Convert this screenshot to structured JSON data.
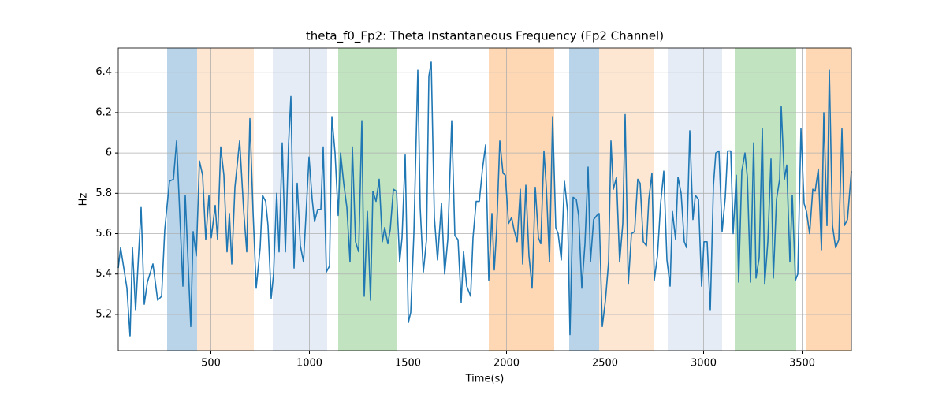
{
  "chart_data": {
    "type": "line",
    "title": "theta_f0_Fp2: Theta Instantaneous Frequency (Fp2 Channel)",
    "xlabel": "Time(s)",
    "ylabel": "Hz",
    "xlim": [
      30,
      3750
    ],
    "ylim": [
      5.02,
      6.52
    ],
    "xticks": [
      500,
      1000,
      1500,
      2000,
      2500,
      3000,
      3500
    ],
    "yticks": [
      5.2,
      5.4,
      5.6,
      5.8,
      6.0,
      6.2,
      6.4
    ],
    "grid": true,
    "spans": [
      {
        "start": 278,
        "end": 430,
        "color": "#b9d4e8"
      },
      {
        "start": 430,
        "end": 718,
        "color": "#fde7d2"
      },
      {
        "start": 814,
        "end": 1090,
        "color": "#e5ecf6"
      },
      {
        "start": 1146,
        "end": 1446,
        "color": "#c1e3bf"
      },
      {
        "start": 1910,
        "end": 2242,
        "color": "#fed8b5"
      },
      {
        "start": 2318,
        "end": 2470,
        "color": "#b9d4e8"
      },
      {
        "start": 2470,
        "end": 2746,
        "color": "#fde7d2"
      },
      {
        "start": 2818,
        "end": 3094,
        "color": "#e5ecf6"
      },
      {
        "start": 3158,
        "end": 3470,
        "color": "#c1e3bf"
      },
      {
        "start": 3522,
        "end": 3750,
        "color": "#fed8b5"
      }
    ],
    "series": [
      {
        "color": "#1f77b4",
        "x": [
          30,
          42,
          74,
          90,
          102,
          118,
          146,
          162,
          178,
          206,
          230,
          250,
          266,
          290,
          310,
          326,
          358,
          370,
          398,
          410,
          426,
          442,
          458,
          474,
          490,
          502,
          522,
          534,
          550,
          566,
          582,
          594,
          606,
          622,
          646,
          666,
          682,
          698,
          714,
          730,
          750,
          762,
          778,
          790,
          806,
          818,
          834,
          846,
          862,
          878,
          894,
          906,
          922,
          938,
          954,
          970,
          998,
          1014,
          1026,
          1042,
          1058,
          1070,
          1086,
          1102,
          1114,
          1130,
          1146,
          1158,
          1174,
          1190,
          1206,
          1218,
          1234,
          1250,
          1266,
          1278,
          1294,
          1310,
          1322,
          1338,
          1354,
          1370,
          1382,
          1398,
          1410,
          1426,
          1442,
          1458,
          1470,
          1486,
          1502,
          1514,
          1530,
          1550,
          1562,
          1578,
          1594,
          1606,
          1618,
          1634,
          1650,
          1670,
          1686,
          1702,
          1722,
          1738,
          1754,
          1770,
          1782,
          1798,
          1818,
          1830,
          1846,
          1862,
          1878,
          1894,
          1910,
          1926,
          1938,
          1950,
          1966,
          1982,
          1994,
          2010,
          2026,
          2038,
          2054,
          2070,
          2082,
          2098,
          2114,
          2130,
          2146,
          2162,
          2174,
          2190,
          2202,
          2218,
          2234,
          2250,
          2262,
          2278,
          2294,
          2310,
          2322,
          2338,
          2354,
          2366,
          2382,
          2398,
          2414,
          2426,
          2442,
          2458,
          2470,
          2486,
          2502,
          2518,
          2530,
          2542,
          2558,
          2574,
          2590,
          2602,
          2618,
          2634,
          2650,
          2666,
          2678,
          2694,
          2710,
          2722,
          2738,
          2750,
          2766,
          2782,
          2798,
          2814,
          2830,
          2842,
          2858,
          2870,
          2886,
          2902,
          2914,
          2930,
          2946,
          2958,
          2974,
          2990,
          3002,
          3018,
          3034,
          3050,
          3062,
          3078,
          3094,
          3110,
          3122,
          3138,
          3150,
          3166,
          3178,
          3194,
          3210,
          3222,
          3238,
          3254,
          3266,
          3282,
          3298,
          3310,
          3326,
          3342,
          3354,
          3370,
          3386,
          3394,
          3410,
          3422,
          3438,
          3450,
          3466,
          3478,
          3494,
          3510,
          3522,
          3538,
          3554,
          3566,
          3582,
          3598,
          3610,
          3626,
          3638,
          3654,
          3670,
          3686,
          3702,
          3714,
          3730,
          3750
        ],
        "values": [
          5.43,
          5.53,
          5.33,
          5.09,
          5.53,
          5.22,
          5.73,
          5.25,
          5.36,
          5.45,
          5.27,
          5.29,
          5.62,
          5.86,
          5.87,
          6.06,
          5.34,
          5.79,
          5.14,
          5.61,
          5.49,
          5.96,
          5.89,
          5.57,
          5.79,
          5.58,
          5.74,
          5.57,
          6.03,
          5.89,
          5.51,
          5.7,
          5.45,
          5.83,
          6.06,
          5.72,
          5.51,
          6.17,
          5.71,
          5.33,
          5.53,
          5.79,
          5.76,
          5.64,
          5.28,
          5.4,
          5.8,
          5.51,
          6.05,
          5.51,
          6.04,
          6.28,
          5.43,
          5.85,
          5.54,
          5.46,
          5.98,
          5.77,
          5.66,
          5.72,
          5.72,
          6.03,
          5.41,
          5.44,
          6.18,
          6.0,
          5.69,
          6.0,
          5.85,
          5.73,
          5.46,
          6.03,
          5.56,
          5.51,
          6.16,
          5.29,
          5.71,
          5.27,
          5.81,
          5.76,
          5.87,
          5.56,
          5.63,
          5.55,
          5.62,
          5.82,
          5.81,
          5.46,
          5.58,
          5.99,
          5.16,
          5.21,
          5.6,
          6.41,
          5.73,
          5.41,
          5.57,
          6.38,
          6.45,
          5.68,
          5.47,
          5.75,
          5.4,
          5.57,
          6.16,
          5.59,
          5.57,
          5.26,
          5.51,
          5.34,
          5.29,
          5.58,
          5.76,
          5.76,
          5.92,
          6.04,
          5.37,
          5.7,
          5.42,
          5.62,
          6.06,
          5.9,
          5.89,
          5.65,
          5.68,
          5.62,
          5.56,
          5.82,
          5.45,
          5.84,
          5.49,
          5.33,
          5.83,
          5.58,
          5.55,
          6.01,
          5.83,
          5.46,
          6.18,
          5.63,
          5.6,
          5.47,
          5.86,
          5.71,
          5.1,
          5.78,
          5.77,
          5.69,
          5.33,
          5.55,
          5.93,
          5.46,
          5.67,
          5.69,
          5.7,
          5.14,
          5.27,
          5.46,
          6.06,
          5.82,
          5.88,
          5.46,
          5.65,
          6.19,
          5.35,
          5.6,
          5.61,
          5.87,
          5.85,
          5.56,
          5.54,
          5.77,
          5.9,
          5.37,
          5.49,
          5.75,
          5.91,
          5.47,
          5.34,
          5.71,
          5.57,
          5.88,
          5.8,
          5.56,
          5.53,
          6.11,
          5.67,
          5.79,
          5.77,
          5.34,
          5.56,
          5.56,
          5.22,
          5.84,
          6.0,
          6.01,
          5.61,
          5.78,
          6.01,
          6.01,
          5.6,
          5.89,
          5.36,
          5.91,
          6.0,
          5.88,
          5.36,
          6.05,
          5.38,
          5.48,
          6.12,
          5.35,
          5.56,
          5.97,
          5.38,
          5.77,
          5.87,
          6.23,
          5.87,
          5.94,
          5.46,
          5.79,
          5.37,
          5.4,
          6.12,
          5.75,
          5.71,
          5.6,
          5.82,
          5.81,
          5.92,
          5.52,
          6.2,
          5.64,
          6.41,
          5.64,
          5.53,
          5.57,
          6.12,
          5.64,
          5.67,
          5.91
        ]
      }
    ]
  }
}
